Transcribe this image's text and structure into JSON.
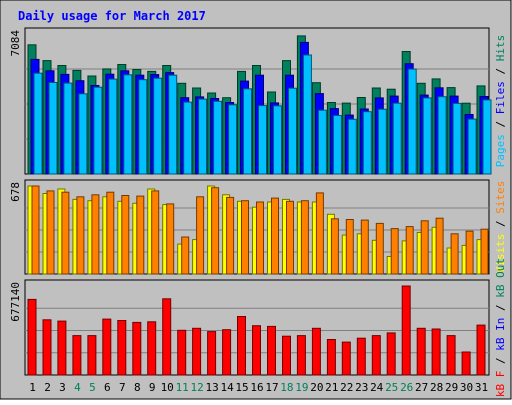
{
  "title": "Daily usage for March 2017",
  "colors": {
    "background": "#c0c0c0",
    "title": "#0000ff",
    "hits": "#00805c",
    "files": "#0000ff",
    "pages": "#00c0ff",
    "visits": "#ffff00",
    "sites": "#ff8000",
    "kbytes": "#ff0000",
    "weekend_label": "#00805c",
    "weekday_label": "#000000"
  },
  "chart_data": [
    {
      "type": "bar",
      "panel": "pages-files-hits",
      "y_max_label": "7084",
      "y_max": 7084,
      "right_label": {
        "pages": "Pages",
        "files": "Files",
        "hits": "Hits",
        "sep": " / "
      },
      "categories": [
        "1",
        "2",
        "3",
        "4",
        "5",
        "6",
        "7",
        "8",
        "9",
        "10",
        "11",
        "12",
        "13",
        "14",
        "15",
        "16",
        "17",
        "18",
        "19",
        "20",
        "21",
        "22",
        "23",
        "24",
        "25",
        "26",
        "27",
        "28",
        "29",
        "30",
        "31"
      ],
      "weekend_days": [
        "4",
        "5",
        "11",
        "12",
        "18",
        "19",
        "25",
        "26"
      ],
      "series": [
        {
          "name": "Hits",
          "color_key": "hits",
          "values": [
            6540,
            5740,
            5490,
            5240,
            4960,
            5320,
            5540,
            5290,
            5190,
            5490,
            4590,
            4350,
            4100,
            3860,
            5190,
            5490,
            4150,
            5740,
            6990,
            4620,
            3620,
            3590,
            3870,
            4350,
            4290,
            6200,
            4590,
            4810,
            4370,
            3580,
            4460
          ]
        },
        {
          "name": "Files",
          "color_key": "files",
          "values": [
            5800,
            5220,
            5040,
            4720,
            4480,
            5050,
            5220,
            5000,
            5030,
            5130,
            3860,
            3900,
            3820,
            3620,
            4700,
            5000,
            3600,
            5000,
            6660,
            4070,
            3310,
            2980,
            3290,
            3850,
            3940,
            5580,
            3990,
            4360,
            3940,
            3010,
            3920
          ]
        },
        {
          "name": "Pages",
          "color_key": "pages",
          "values": [
            5100,
            4630,
            4600,
            4060,
            4390,
            4800,
            5020,
            4770,
            4850,
            5000,
            3640,
            3790,
            3680,
            3500,
            4310,
            3460,
            3450,
            4340,
            6020,
            3230,
            2960,
            2770,
            3150,
            3280,
            3580,
            5310,
            3850,
            3910,
            3570,
            2780,
            3750
          ]
        }
      ]
    },
    {
      "type": "bar",
      "panel": "visits-sites",
      "y_max_label": "678",
      "y_max": 678,
      "right_label": {
        "visits": "Visits",
        "sites": "Sites",
        "sep": " / "
      },
      "categories": [
        "1",
        "2",
        "3",
        "4",
        "5",
        "6",
        "7",
        "8",
        "9",
        "10",
        "11",
        "12",
        "13",
        "14",
        "15",
        "16",
        "17",
        "18",
        "19",
        "20",
        "21",
        "22",
        "23",
        "24",
        "25",
        "26",
        "27",
        "28",
        "29",
        "30",
        "31"
      ],
      "series": [
        {
          "name": "Visits",
          "color_key": "visits",
          "values": [
            678,
            620,
            655,
            575,
            565,
            595,
            560,
            545,
            655,
            535,
            230,
            265,
            678,
            610,
            560,
            515,
            555,
            575,
            555,
            555,
            460,
            300,
            310,
            260,
            135,
            255,
            320,
            360,
            200,
            220,
            265
          ]
        },
        {
          "name": "Sites",
          "color_key": "sites",
          "values": [
            678,
            640,
            630,
            595,
            610,
            630,
            605,
            600,
            640,
            540,
            285,
            595,
            665,
            590,
            565,
            555,
            585,
            560,
            565,
            625,
            425,
            420,
            415,
            390,
            350,
            365,
            410,
            430,
            310,
            330,
            345
          ]
        }
      ]
    },
    {
      "type": "bar",
      "panel": "kbytes",
      "y_max_label": "677140",
      "y_max": 677140,
      "right_label": {
        "kb_f": "kB F",
        "kb_in": "kB In",
        "kb_out": "kB Out",
        "sep": " / "
      },
      "categories": [
        "1",
        "2",
        "3",
        "4",
        "5",
        "6",
        "7",
        "8",
        "9",
        "10",
        "11",
        "12",
        "13",
        "14",
        "15",
        "16",
        "17",
        "18",
        "19",
        "20",
        "21",
        "22",
        "23",
        "24",
        "25",
        "26",
        "27",
        "28",
        "29",
        "30",
        "31"
      ],
      "series": [
        {
          "name": "kB F",
          "color_key": "kbytes",
          "values": [
            575000,
            420000,
            410000,
            300000,
            300000,
            425000,
            415000,
            400000,
            405000,
            580000,
            340000,
            355000,
            330000,
            345000,
            445000,
            375000,
            370000,
            295000,
            300000,
            355000,
            270000,
            250000,
            280000,
            300000,
            320000,
            677140,
            355000,
            350000,
            300000,
            175000,
            380000
          ]
        }
      ]
    }
  ]
}
